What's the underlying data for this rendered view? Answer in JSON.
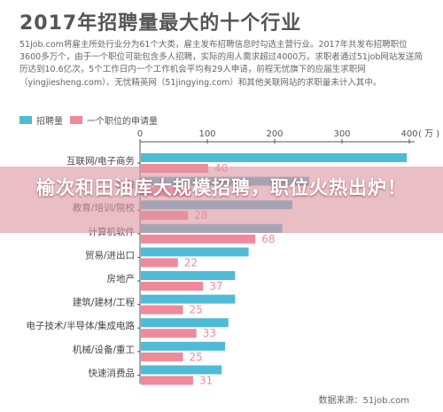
{
  "header": {
    "title": "2017年招聘量最大的十个行业",
    "intro": "51job.com将雇主所处行业分为61个大类，雇主发布招聘信息时勾选主营行业。2017年共发布招聘职位3600多万个，由于一个职位可能包含多人招聘，实际的用人需求超过4000万。求职者通过51job网站发送简历达到10.6亿次，5个工作日内一个工作机会平均有29人申请，前程无忧旗下的应届生求职网（yingjiesheng.com）、无忧精英网（51jingying.com）和其他关联网站的求职量未计入其中。"
  },
  "banner": {
    "text": "榆次和田油库大规模招聘，职位火热出炉！"
  },
  "source": "数据来源：51job.com",
  "chart_data": {
    "type": "bar",
    "orientation": "horizontal",
    "title": "2017年招聘量最大的十个行业",
    "categories": [
      "互联网/电子商务",
      "金融",
      "教育/培训/院校",
      "计算机软件",
      "贸易/进出口",
      "房地产",
      "建筑/建材/工程",
      "电子技术/半导体/集成电路",
      "机械/设备/重工",
      "快速消费品"
    ],
    "series": [
      {
        "name": "招聘量",
        "unit": "万",
        "values": [
          395,
          250,
          225,
          210,
          160,
          140,
          140,
          130,
          125,
          120
        ]
      },
      {
        "name": "一个职位的申请量",
        "values": [
          40,
          30,
          28,
          68,
          22,
          37,
          25,
          33,
          25,
          31
        ]
      }
    ],
    "xaxis": {
      "ticks": [
        0,
        100,
        200,
        300,
        400
      ],
      "unit": "万",
      "range": [
        0,
        400
      ]
    },
    "colors": {
      "recruit": "#4fbbd6",
      "applications": "#f08a9b",
      "axis": "#555555",
      "grid": "#e6e6e6"
    },
    "legend_position": "top-left",
    "grid": false
  }
}
